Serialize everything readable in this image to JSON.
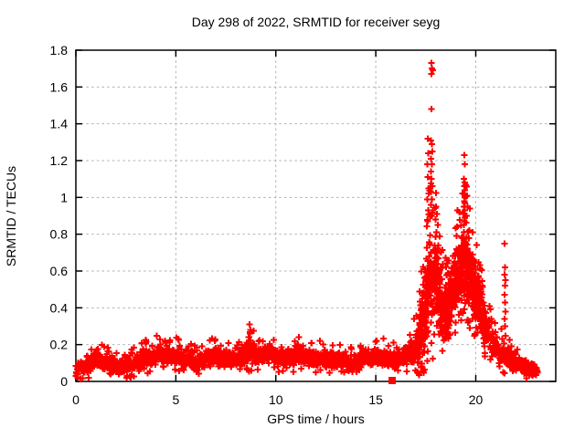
{
  "chart_data": {
    "type": "scatter",
    "title": "Day 298 of 2022, SRMTID for receiver seyg",
    "xlabel": "GPS time / hours",
    "ylabel": "SRMTID / TECUs",
    "xlim": [
      0,
      24
    ],
    "ylim": [
      0,
      1.8
    ],
    "xticks": [
      0,
      5,
      10,
      15,
      20
    ],
    "yticks": [
      0,
      0.2,
      0.4,
      0.6,
      0.8,
      1.0,
      1.2,
      1.4,
      1.6,
      1.8
    ],
    "ytick_labels": [
      "0",
      "0.2",
      "0.4",
      "0.6",
      "0.8",
      "1",
      "1.2",
      "1.4",
      "1.6",
      "1.8"
    ],
    "grid": true,
    "legend": "none",
    "colors": {
      "marker": "#ff0000",
      "grid": "#b0b0b0",
      "frame": "#000000",
      "text": "#000000",
      "background": "#ffffff"
    },
    "marker": {
      "shape": "plus",
      "size": 7,
      "stroke_width": 2
    },
    "square_point": {
      "hour": 15.82,
      "value": 0.005,
      "size": 8
    },
    "sampling": {
      "start": 0.0,
      "end": 23.1,
      "step": 0.01,
      "dense_start": 17.0,
      "dense_end": 20.5,
      "dense_step": 0.005,
      "seed": 1298
    },
    "band_profile": [
      [
        0.0,
        0.06,
        0.045
      ],
      [
        0.4,
        0.085,
        0.05
      ],
      [
        0.9,
        0.115,
        0.055
      ],
      [
        1.3,
        0.115,
        0.05
      ],
      [
        1.8,
        0.085,
        0.05
      ],
      [
        2.3,
        0.075,
        0.045
      ],
      [
        2.8,
        0.09,
        0.05
      ],
      [
        3.3,
        0.12,
        0.055
      ],
      [
        3.8,
        0.135,
        0.06
      ],
      [
        4.4,
        0.15,
        0.065
      ],
      [
        4.9,
        0.135,
        0.06
      ],
      [
        5.4,
        0.13,
        0.055
      ],
      [
        5.9,
        0.105,
        0.05
      ],
      [
        6.4,
        0.11,
        0.05
      ],
      [
        6.9,
        0.145,
        0.06
      ],
      [
        7.4,
        0.125,
        0.055
      ],
      [
        7.9,
        0.12,
        0.05
      ],
      [
        8.4,
        0.14,
        0.06
      ],
      [
        8.7,
        0.165,
        0.075
      ],
      [
        9.2,
        0.15,
        0.06
      ],
      [
        9.7,
        0.155,
        0.06
      ],
      [
        10.2,
        0.14,
        0.06
      ],
      [
        10.7,
        0.13,
        0.055
      ],
      [
        11.2,
        0.15,
        0.065
      ],
      [
        11.7,
        0.12,
        0.05
      ],
      [
        12.2,
        0.13,
        0.055
      ],
      [
        12.7,
        0.12,
        0.05
      ],
      [
        13.2,
        0.11,
        0.05
      ],
      [
        13.7,
        0.1,
        0.05
      ],
      [
        14.2,
        0.11,
        0.05
      ],
      [
        14.7,
        0.12,
        0.05
      ],
      [
        15.2,
        0.14,
        0.06
      ],
      [
        15.7,
        0.12,
        0.05
      ],
      [
        16.2,
        0.13,
        0.055
      ],
      [
        16.7,
        0.15,
        0.07
      ],
      [
        17.1,
        0.2,
        0.12
      ],
      [
        17.4,
        0.35,
        0.22
      ],
      [
        17.7,
        0.55,
        0.3
      ],
      [
        18.0,
        0.55,
        0.28
      ],
      [
        18.3,
        0.4,
        0.18
      ],
      [
        18.6,
        0.4,
        0.15
      ],
      [
        18.9,
        0.5,
        0.18
      ],
      [
        19.2,
        0.6,
        0.22
      ],
      [
        19.5,
        0.65,
        0.25
      ],
      [
        19.8,
        0.55,
        0.2
      ],
      [
        20.1,
        0.45,
        0.15
      ],
      [
        20.4,
        0.32,
        0.13
      ],
      [
        20.7,
        0.24,
        0.1
      ],
      [
        21.1,
        0.17,
        0.08
      ],
      [
        21.6,
        0.13,
        0.06
      ],
      [
        22.1,
        0.1,
        0.05
      ],
      [
        22.6,
        0.075,
        0.04
      ],
      [
        23.1,
        0.055,
        0.035
      ]
    ],
    "extra_points": [
      [
        17.78,
        1.73
      ],
      [
        17.81,
        1.7
      ],
      [
        17.84,
        1.69
      ],
      [
        17.79,
        1.67
      ],
      [
        17.78,
        1.48
      ],
      [
        17.76,
        1.31
      ],
      [
        17.8,
        1.29
      ],
      [
        17.82,
        1.25
      ],
      [
        17.77,
        1.21
      ],
      [
        17.81,
        1.18
      ],
      [
        17.75,
        1.14
      ],
      [
        17.79,
        1.1
      ],
      [
        17.83,
        1.06
      ],
      [
        17.77,
        1.03
      ],
      [
        17.6,
        1.32
      ],
      [
        17.62,
        1.24
      ],
      [
        17.58,
        1.18
      ],
      [
        17.61,
        1.11
      ],
      [
        17.64,
        1.05
      ],
      [
        17.57,
        0.99
      ],
      [
        17.62,
        0.93
      ],
      [
        17.59,
        0.87
      ],
      [
        17.81,
        0.99
      ],
      [
        17.76,
        0.96
      ],
      [
        17.85,
        0.93
      ],
      [
        17.79,
        0.9
      ],
      [
        18.02,
        0.95
      ],
      [
        18.06,
        0.91
      ],
      [
        17.98,
        0.88
      ],
      [
        18.1,
        0.85
      ],
      [
        18.04,
        0.81
      ],
      [
        19.42,
        1.23
      ],
      [
        19.45,
        1.18
      ],
      [
        19.4,
        1.1
      ],
      [
        19.44,
        1.08
      ],
      [
        19.42,
        1.06
      ],
      [
        19.46,
        1.04
      ],
      [
        19.4,
        1.02
      ],
      [
        19.44,
        1.0
      ],
      [
        19.43,
        0.98
      ],
      [
        19.46,
        0.97
      ],
      [
        19.4,
        0.95
      ],
      [
        19.44,
        0.93
      ],
      [
        19.38,
        0.91
      ],
      [
        19.46,
        0.89
      ],
      [
        19.42,
        0.87
      ],
      [
        19.41,
        0.85
      ],
      [
        19.56,
        1.01
      ],
      [
        19.58,
        0.95
      ],
      [
        19.54,
        0.9
      ],
      [
        21.44,
        0.75
      ],
      [
        21.46,
        0.62
      ],
      [
        21.44,
        0.58
      ],
      [
        21.48,
        0.55
      ],
      [
        21.46,
        0.52
      ],
      [
        21.44,
        0.47
      ],
      [
        21.47,
        0.43
      ],
      [
        21.48,
        0.38
      ],
      [
        21.45,
        0.34
      ],
      [
        21.46,
        0.3
      ],
      [
        8.68,
        0.31
      ],
      [
        8.72,
        0.28
      ],
      [
        8.7,
        0.26
      ],
      [
        8.66,
        0.24
      ],
      [
        8.74,
        0.22
      ],
      [
        4.45,
        0.22
      ],
      [
        6.95,
        0.22
      ],
      [
        11.15,
        0.24
      ],
      [
        15.05,
        0.22
      ],
      [
        12.2,
        0.22
      ],
      [
        1.05,
        0.17
      ]
    ]
  }
}
